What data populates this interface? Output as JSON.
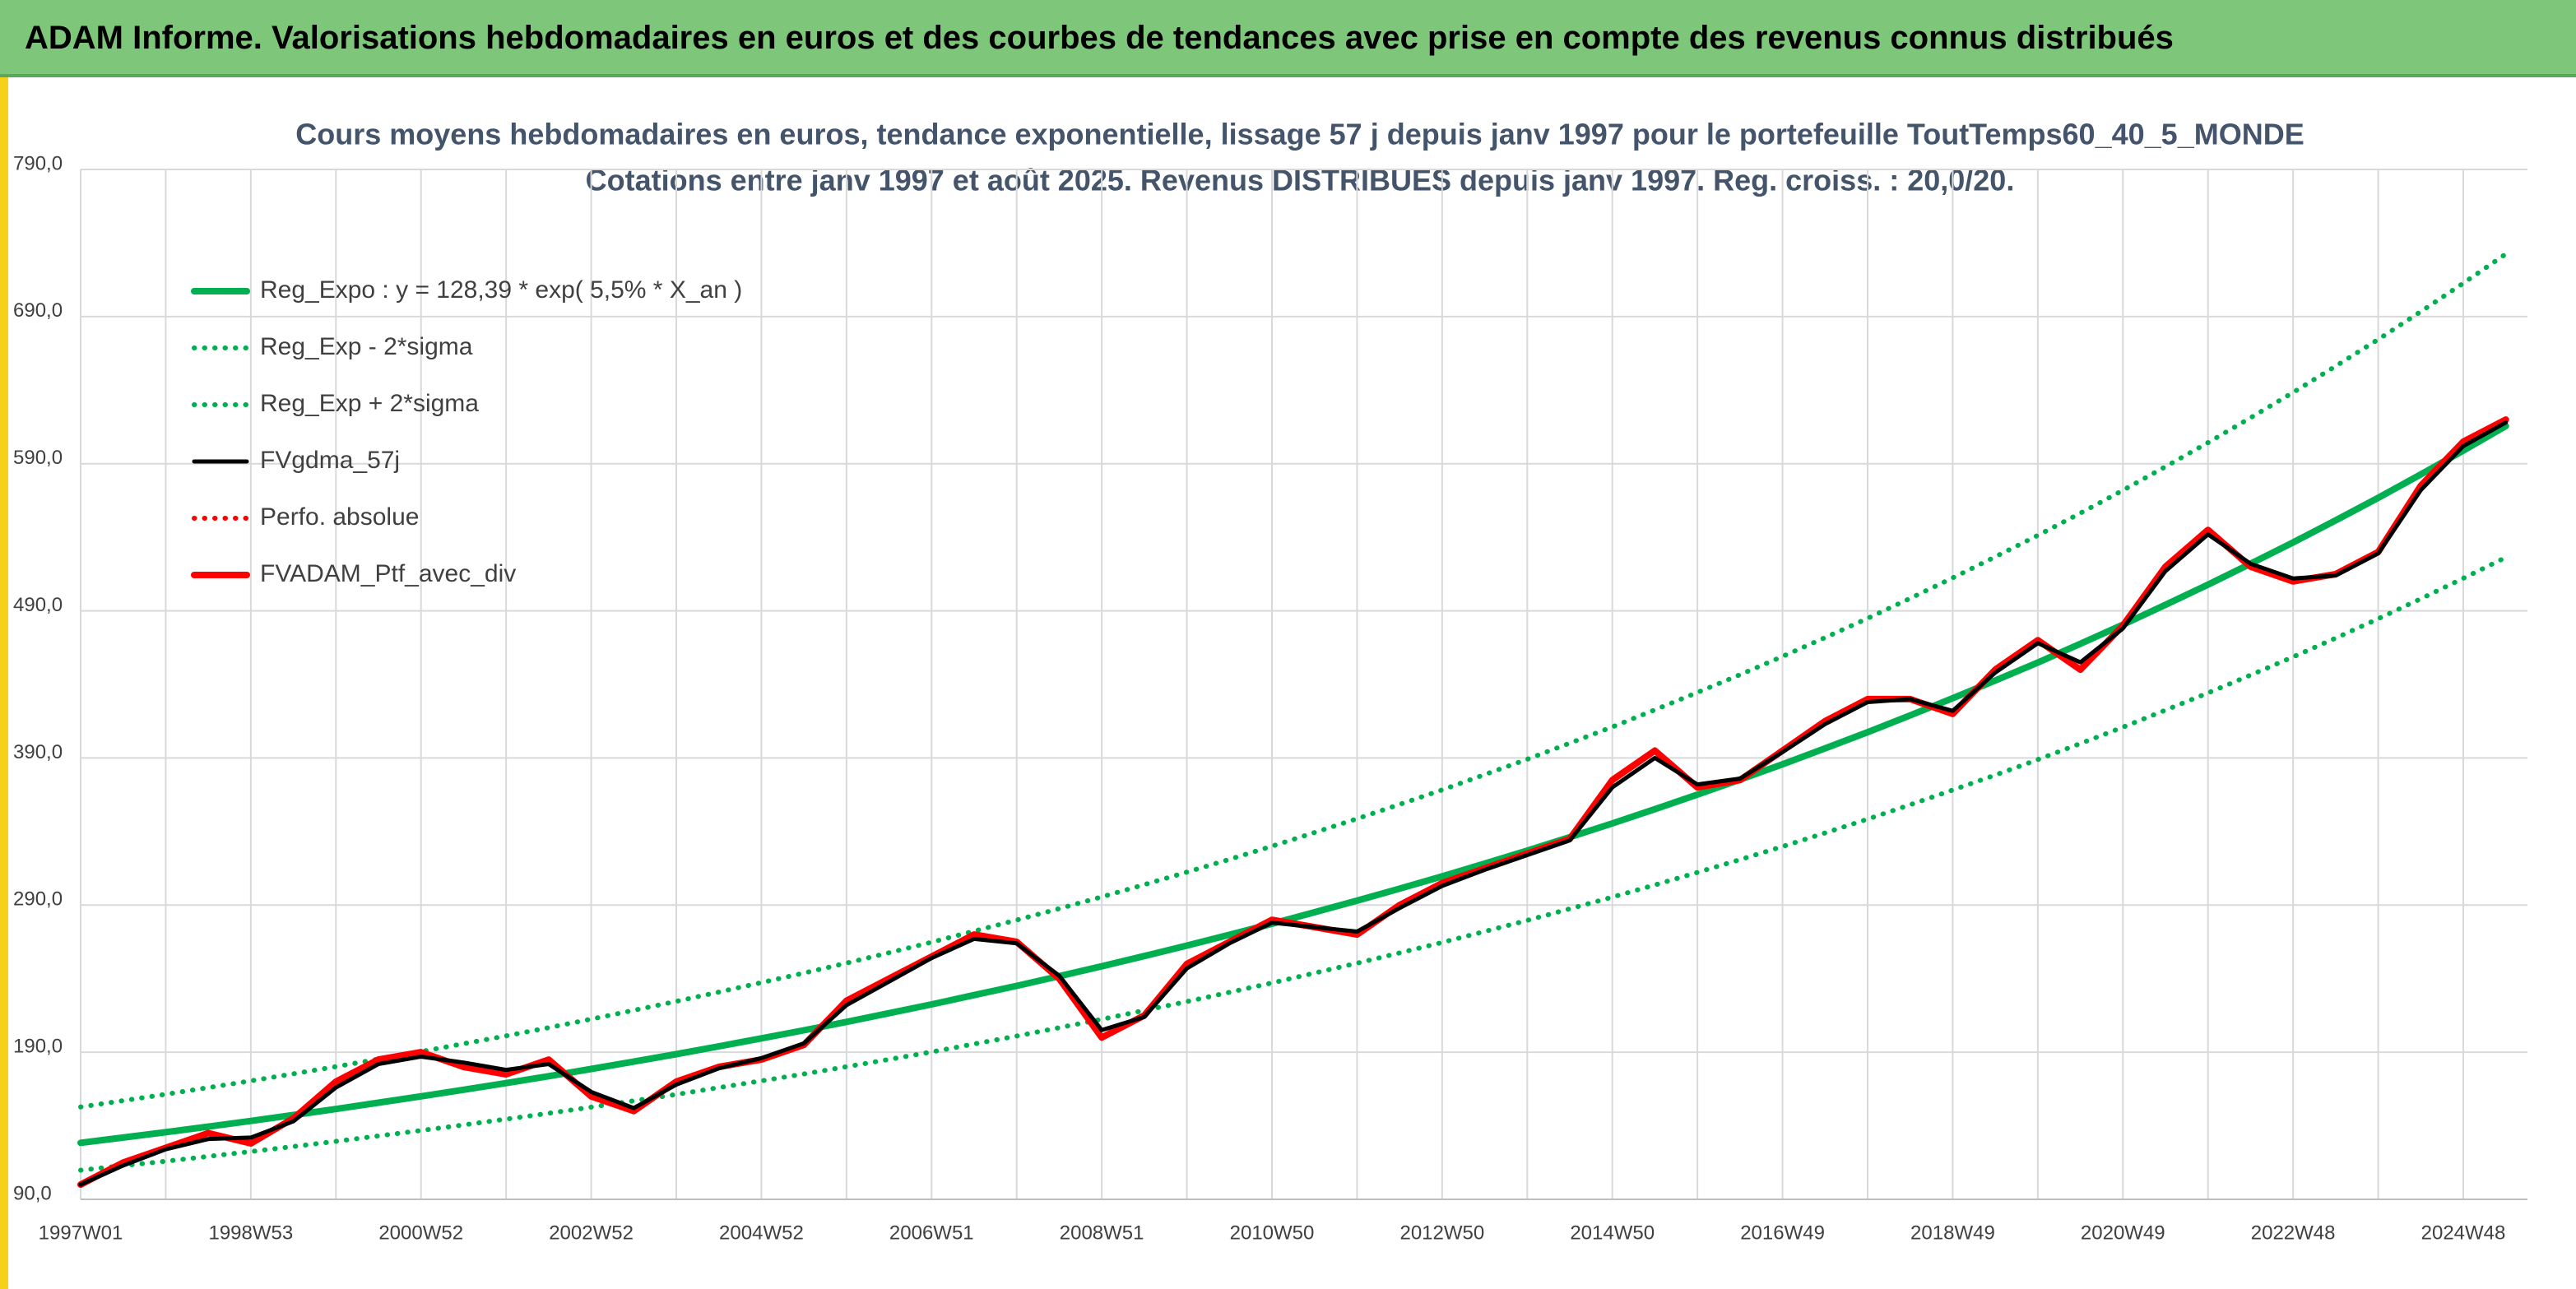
{
  "header": "ADAM Informe. Valorisations hebdomadaires en euros et des courbes de tendances avec prise en compte des revenus connus distribués",
  "chart_data": {
    "type": "line",
    "title": "Cours moyens hebdomadaires en euros, tendance exponentielle, lissage 57 j depuis janv 1997 pour le portefeuille ToutTemps60_40_5_MONDE",
    "subtitle": "Cotations entre janv 1997 et août 2025. Revenus DISTRIBUES depuis janv 1997. Reg. croiss. : 20,0/20.",
    "categories": [
      "1997W01",
      null,
      null,
      null,
      "1998W53",
      null,
      null,
      null,
      "2000W52",
      null,
      null,
      null,
      "2002W52",
      null,
      null,
      null,
      "2004W52",
      null,
      null,
      null,
      "2006W51",
      null,
      null,
      null,
      "2008W51",
      null,
      null,
      null,
      "2010W50",
      null,
      null,
      null,
      "2012W50",
      null,
      null,
      null,
      "2014W50",
      null,
      null,
      null,
      "2016W49",
      null,
      null,
      null,
      "2018W49",
      null,
      null,
      null,
      "2020W49",
      null,
      null,
      null,
      "2022W48",
      null,
      null,
      null,
      "2024W48",
      null
    ],
    "ylim": [
      90,
      790
    ],
    "yticks": [
      {
        "value": 90,
        "label": "90,0"
      },
      {
        "value": 190,
        "label": "190,0"
      },
      {
        "value": 290,
        "label": "290,0"
      },
      {
        "value": 390,
        "label": "390,0"
      },
      {
        "value": 490,
        "label": "490,0"
      },
      {
        "value": 590,
        "label": "590,0"
      },
      {
        "value": 690,
        "label": "690,0"
      },
      {
        "value": 790,
        "label": "790,0"
      }
    ],
    "grid": true,
    "legend": "upper left",
    "series": [
      {
        "name": "Reg_Expo : y = 128,39 * exp( 5,5% *  X_an )",
        "color": "#00b050",
        "style": "solid",
        "values": [
          128.4,
          132.0,
          135.6,
          139.4,
          143.3,
          147.3,
          151.4,
          155.7,
          160.0,
          164.5,
          169.0,
          173.7,
          178.6,
          183.6,
          188.7,
          194.0,
          199.4,
          204.9,
          210.6,
          216.5,
          222.5,
          228.8,
          235.1,
          241.7,
          248.4,
          255.4,
          262.5,
          269.8,
          277.3,
          285.1,
          293.0,
          301.2,
          309.5,
          318.2,
          327.0,
          336.2,
          345.5,
          355.2,
          365.1,
          375.3,
          385.7,
          396.5,
          407.5,
          418.9,
          430.6,
          442.6,
          454.9,
          467.6,
          480.6,
          494.1,
          507.8,
          522.0,
          536.5,
          551.5,
          566.8,
          582.7,
          598.9,
          615.6
        ]
      },
      {
        "name": "Reg_Exp - 2*sigma",
        "color": "#00b050",
        "style": "dotted",
        "values": [
          109.8,
          112.9,
          115.9,
          119.2,
          122.5,
          125.9,
          129.4,
          133.1,
          136.8,
          140.6,
          144.5,
          148.5,
          152.7,
          157.0,
          161.3,
          165.9,
          170.5,
          175.2,
          180.1,
          185.1,
          190.2,
          195.6,
          201.0,
          206.7,
          212.4,
          218.4,
          224.4,
          230.7,
          237.1,
          243.8,
          250.5,
          257.5,
          264.6,
          272.1,
          279.6,
          287.5,
          295.4,
          303.7,
          312.2,
          320.9,
          329.8,
          339.0,
          348.4,
          358.2,
          368.2,
          378.4,
          388.9,
          399.8,
          410.9,
          422.5,
          434.2,
          446.3,
          458.7,
          471.5,
          484.6,
          498.2,
          512.1,
          526.3
        ]
      },
      {
        "name": "Reg_Exp + 2*sigma",
        "color": "#00b050",
        "style": "dotted",
        "values": [
          152.8,
          157.1,
          161.4,
          165.9,
          170.5,
          175.3,
          180.2,
          185.3,
          190.4,
          195.8,
          201.1,
          206.7,
          212.5,
          218.5,
          224.6,
          230.9,
          237.3,
          243.8,
          250.6,
          257.6,
          264.8,
          272.3,
          279.8,
          287.6,
          295.6,
          303.9,
          312.4,
          321.1,
          330.0,
          339.3,
          348.7,
          358.4,
          368.3,
          378.7,
          389.1,
          400.1,
          411.1,
          422.7,
          434.5,
          446.6,
          459.0,
          471.8,
          484.9,
          498.5,
          512.4,
          526.7,
          541.3,
          556.4,
          571.9,
          588.0,
          604.3,
          621.2,
          638.4,
          656.3,
          674.5,
          693.4,
          712.7,
          732.6
        ]
      },
      {
        "name": "FVgdma_57j",
        "color": "#000000",
        "style": "solid",
        "values": [
          100,
          113,
          124,
          131,
          132,
          143,
          166,
          182,
          187,
          183,
          178,
          182,
          163,
          152,
          168,
          179,
          186,
          196,
          222,
          238,
          254,
          267,
          264,
          242,
          205,
          214,
          247,
          264,
          278,
          275,
          272,
          288,
          303,
          314,
          324,
          334,
          370,
          390,
          372,
          376,
          394,
          413,
          428,
          430,
          422,
          448,
          468,
          455,
          478,
          517,
          542,
          522,
          512,
          514,
          529,
          572,
          602,
          618
        ]
      },
      {
        "name": "Perfo. absolue",
        "color": "#ff0000",
        "style": "dotted",
        "values": [
          100,
          115,
          125,
          135,
          128,
          145,
          170,
          185,
          190,
          180,
          175,
          185,
          160,
          150,
          170,
          180,
          185,
          195,
          225,
          240,
          255,
          270,
          265,
          240,
          200,
          215,
          250,
          265,
          280,
          275,
          270,
          290,
          305,
          315,
          325,
          335,
          375,
          395,
          370,
          375,
          395,
          415,
          430,
          430,
          420,
          450,
          470,
          450,
          480,
          520,
          545,
          520,
          510,
          515,
          530,
          575,
          605,
          620
        ]
      },
      {
        "name": "FVADAM_Ptf_avec_div",
        "color": "#ff0000",
        "style": "solid",
        "values": [
          100,
          115,
          125,
          135,
          128,
          145,
          170,
          185,
          190,
          180,
          175,
          185,
          160,
          150,
          170,
          180,
          185,
          195,
          225,
          240,
          255,
          270,
          265,
          240,
          200,
          215,
          250,
          265,
          280,
          275,
          270,
          290,
          305,
          315,
          325,
          335,
          375,
          395,
          370,
          375,
          395,
          415,
          430,
          430,
          420,
          450,
          470,
          450,
          480,
          520,
          545,
          520,
          510,
          515,
          530,
          575,
          605,
          620
        ]
      }
    ]
  }
}
